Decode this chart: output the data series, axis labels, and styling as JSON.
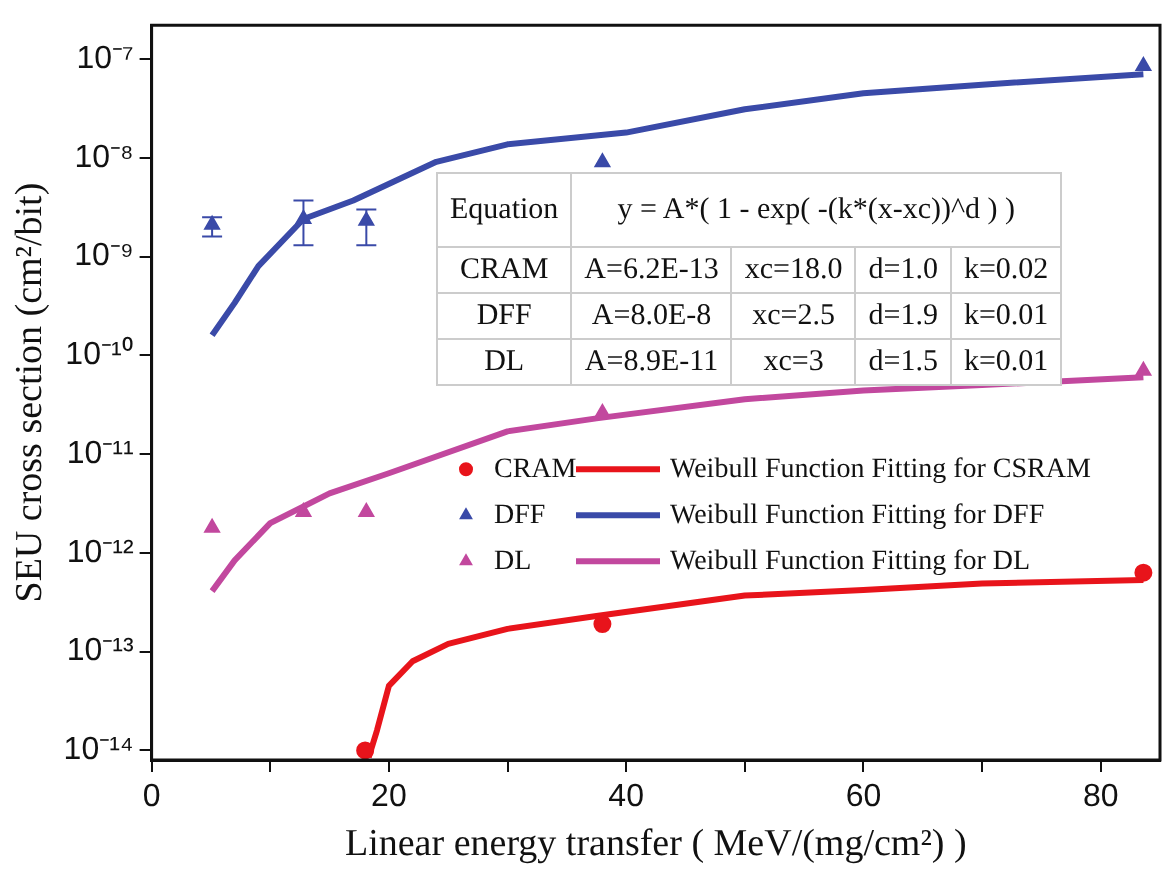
{
  "chart_data": {
    "type": "scatter",
    "xlabel": "Linear energy transfer ( MeV/(mg/cm²) )",
    "ylabel": "SEU cross section (cm²/bit)",
    "xlim": [
      0,
      85
    ],
    "xticks": [
      0,
      {
        "value": 10,
        "label": null
      },
      20,
      {
        "value": 30,
        "label": null
      },
      40,
      {
        "value": 50,
        "label": null
      },
      60,
      {
        "value": 70,
        "label": null
      },
      80
    ],
    "ylim": [
      8e-15,
      2.2e-07
    ],
    "yticks": [
      {
        "value": 1e-14,
        "label": "10⁻¹⁴"
      },
      {
        "value": 1e-13,
        "label": "10⁻¹³"
      },
      {
        "value": 1e-12,
        "label": "10⁻¹²"
      },
      {
        "value": 1e-11,
        "label": "10⁻¹¹"
      },
      {
        "value": 1e-10,
        "label": "10⁻¹⁰"
      },
      {
        "value": 1e-09,
        "label": "10⁻⁹"
      },
      {
        "value": 1e-08,
        "label": "10⁻⁸"
      },
      {
        "value": 1e-07,
        "label": "10⁻⁷"
      }
    ],
    "log": "y",
    "grid": false,
    "legend": "bottom right",
    "annotations": [
      "Equation",
      "y = A*( 1 - exp( -(k*(x-xc))^d ) )",
      "CRAM",
      "A=6.2E-13",
      "xc=18.0",
      "d=1.0",
      "k=0.02",
      "DFF",
      "A=8.0E-8",
      "xc=2.5",
      "d=1.9",
      "k=0.01",
      "DL",
      "A=8.9E-11",
      "xc=3",
      "d=1.5",
      "k=0.01"
    ],
    "series": [
      {
        "name": "CRAM",
        "type": "scatter",
        "marker": "circle",
        "color": "#e8141b",
        "x": [
          18,
          38,
          83.6
        ],
        "values": [
          1e-14,
          1.9e-13,
          6.3e-13
        ]
      },
      {
        "name": "DFF",
        "type": "scatter",
        "marker": "triangle",
        "color": "#3a4aa8",
        "x": [
          5.1,
          12.8,
          18.1,
          38,
          83.6
        ],
        "values": [
          2.1e-09,
          2.4e-09,
          2.3e-09,
          9e-09,
          8.5e-08
        ],
        "errors": [
          [
            1.6e-09,
            2.5e-09
          ],
          [
            1.3e-09,
            3.7e-09
          ],
          [
            1.3e-09,
            3e-09
          ],
          null,
          null
        ]
      },
      {
        "name": "DL",
        "type": "scatter",
        "marker": "triangle",
        "color": "#c2489e",
        "x": [
          5.1,
          12.8,
          18.1,
          38,
          83.6
        ],
        "values": [
          1.8e-12,
          2.6e-12,
          2.6e-12,
          2.6e-11,
          7e-11
        ]
      },
      {
        "name": "Weibull Function Fitting for CSRAM",
        "type": "line",
        "marker": "none",
        "color": "#e8141b",
        "x": [
          18.3,
          19,
          20,
          22,
          25,
          30,
          37.5,
          50,
          60,
          70,
          83.6
        ],
        "values": [
          8.5e-15,
          1.6e-14,
          4.5e-14,
          8e-14,
          1.2e-13,
          1.7e-13,
          2.3e-13,
          3.7e-13,
          4.2e-13,
          4.9e-13,
          5.3e-13
        ]
      },
      {
        "name": "Weibull Function Fitting for DFF",
        "type": "line",
        "marker": "none",
        "color": "#3a4aa8",
        "x": [
          5.1,
          7,
          9,
          12.8,
          17,
          24,
          30,
          40,
          50,
          60,
          70,
          83.6
        ],
        "values": [
          1.6e-10,
          3.4e-10,
          8e-10,
          2.4e-09,
          3.7e-09,
          9.1e-09,
          1.37e-08,
          1.8e-08,
          3.1e-08,
          4.5e-08,
          5.5e-08,
          7e-08
        ]
      },
      {
        "name": "Weibull Function Fitting for DL",
        "type": "line",
        "marker": "none",
        "color": "#c2489e",
        "x": [
          5.1,
          7,
          10,
          15,
          20,
          30,
          37.5,
          50,
          60,
          70,
          83.6
        ],
        "values": [
          4.1e-13,
          8.4e-13,
          2e-12,
          4e-12,
          6.4e-12,
          1.7e-11,
          2.3e-11,
          3.6e-11,
          4.4e-11,
          5e-11,
          6e-11
        ]
      }
    ]
  }
}
